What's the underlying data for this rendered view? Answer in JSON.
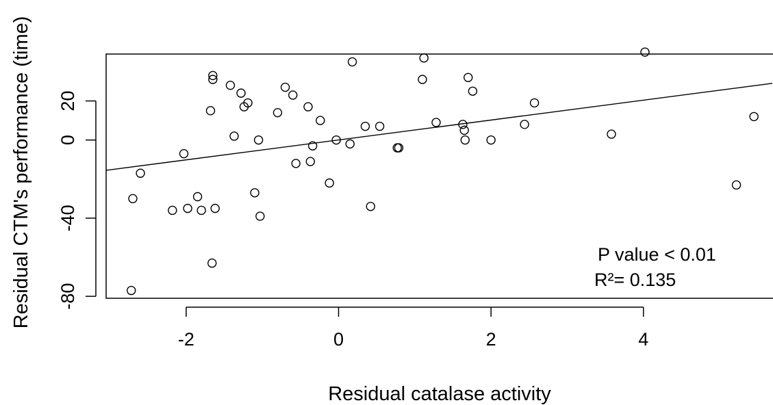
{
  "chart_data": {
    "type": "scatter",
    "title": "",
    "xlabel": "Residual catalase activity",
    "ylabel": "Residual CTM's performance (time)",
    "xlim": [
      -3.05,
      5.7
    ],
    "ylim": [
      -81,
      44
    ],
    "x_ticks": [
      -2,
      0,
      2,
      4
    ],
    "y_ticks": [
      -80,
      -40,
      0,
      20
    ],
    "grid": false,
    "marker": "open-circle",
    "annotations": [
      "P value < 0.01",
      "R²= 0.135"
    ],
    "fit_line": {
      "x": [
        -3.05,
        5.7
      ],
      "y": [
        -15.5,
        29.0
      ]
    },
    "points": [
      {
        "x": -2.72,
        "y": -77
      },
      {
        "x": -2.7,
        "y": -30
      },
      {
        "x": -2.6,
        "y": -17
      },
      {
        "x": -2.18,
        "y": -36
      },
      {
        "x": -2.03,
        "y": -7
      },
      {
        "x": -1.98,
        "y": -35
      },
      {
        "x": -1.85,
        "y": -29
      },
      {
        "x": -1.8,
        "y": -36
      },
      {
        "x": -1.68,
        "y": 15
      },
      {
        "x": -1.66,
        "y": -63
      },
      {
        "x": -1.65,
        "y": 33
      },
      {
        "x": -1.65,
        "y": 31
      },
      {
        "x": -1.62,
        "y": -35
      },
      {
        "x": -1.42,
        "y": 28
      },
      {
        "x": -1.37,
        "y": 2
      },
      {
        "x": -1.28,
        "y": 24
      },
      {
        "x": -1.24,
        "y": 17
      },
      {
        "x": -1.19,
        "y": 19
      },
      {
        "x": -1.1,
        "y": -27
      },
      {
        "x": -1.05,
        "y": 0
      },
      {
        "x": -1.03,
        "y": -39
      },
      {
        "x": -0.8,
        "y": 14
      },
      {
        "x": -0.7,
        "y": 27
      },
      {
        "x": -0.6,
        "y": 23
      },
      {
        "x": -0.56,
        "y": -12
      },
      {
        "x": -0.4,
        "y": 17
      },
      {
        "x": -0.37,
        "y": -11
      },
      {
        "x": -0.34,
        "y": -3
      },
      {
        "x": -0.24,
        "y": 10
      },
      {
        "x": -0.12,
        "y": -22
      },
      {
        "x": -0.03,
        "y": 0
      },
      {
        "x": 0.15,
        "y": -2
      },
      {
        "x": 0.18,
        "y": 40
      },
      {
        "x": 0.35,
        "y": 7
      },
      {
        "x": 0.42,
        "y": -34
      },
      {
        "x": 0.54,
        "y": 7
      },
      {
        "x": 0.77,
        "y": -4
      },
      {
        "x": 0.79,
        "y": -4
      },
      {
        "x": 1.1,
        "y": 31
      },
      {
        "x": 1.12,
        "y": 42
      },
      {
        "x": 1.28,
        "y": 9
      },
      {
        "x": 1.63,
        "y": 8
      },
      {
        "x": 1.65,
        "y": 5
      },
      {
        "x": 1.66,
        "y": 0
      },
      {
        "x": 1.7,
        "y": 32
      },
      {
        "x": 1.76,
        "y": 25
      },
      {
        "x": 2.0,
        "y": 0
      },
      {
        "x": 2.44,
        "y": 8
      },
      {
        "x": 2.57,
        "y": 19
      },
      {
        "x": 3.58,
        "y": 3
      },
      {
        "x": 4.02,
        "y": 45
      },
      {
        "x": 5.22,
        "y": -23
      },
      {
        "x": 5.45,
        "y": 12
      }
    ]
  }
}
